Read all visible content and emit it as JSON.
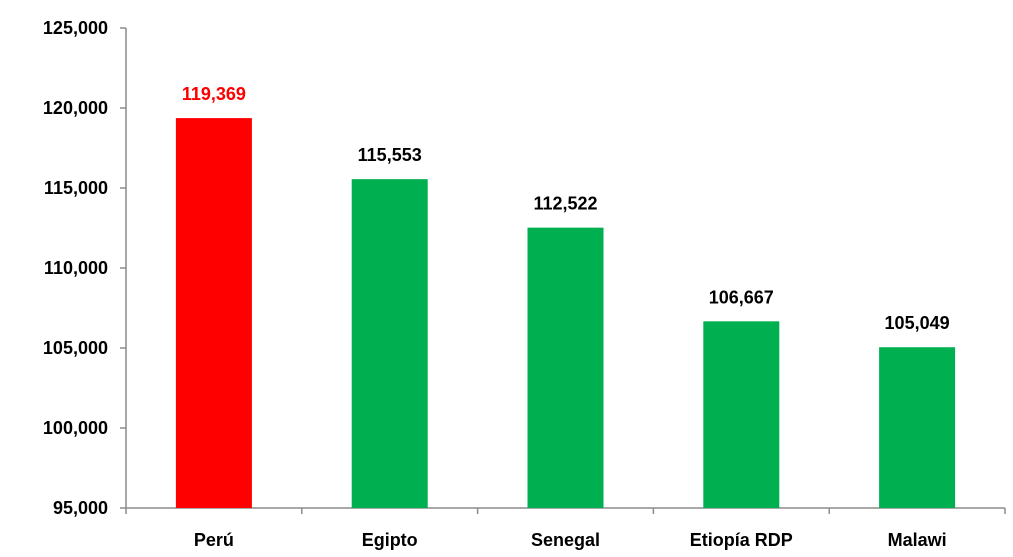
{
  "chart_data": {
    "type": "bar",
    "title": "",
    "xlabel": "",
    "ylabel": "",
    "categories": [
      "Perú",
      "Egipto",
      "Senegal",
      "Etiopía RDP",
      "Malawi"
    ],
    "values": [
      119369,
      115553,
      112522,
      106667,
      105049
    ],
    "value_labels": [
      "119,369",
      "115,553",
      "112,522",
      "106,667",
      "105,049"
    ],
    "bar_colors": [
      "#ff0000",
      "#00b050",
      "#00b050",
      "#00b050",
      "#00b050"
    ],
    "value_label_colors": [
      "#ff0000",
      "#000000",
      "#000000",
      "#000000",
      "#000000"
    ],
    "ylim": [
      95000,
      125000
    ],
    "yticks": [
      95000,
      100000,
      105000,
      110000,
      115000,
      120000,
      125000
    ],
    "ytick_labels": [
      "95,000",
      "100,000",
      "105,000",
      "110,000",
      "115,000",
      "120,000",
      "125,000"
    ],
    "grid": false,
    "legend": "none"
  }
}
